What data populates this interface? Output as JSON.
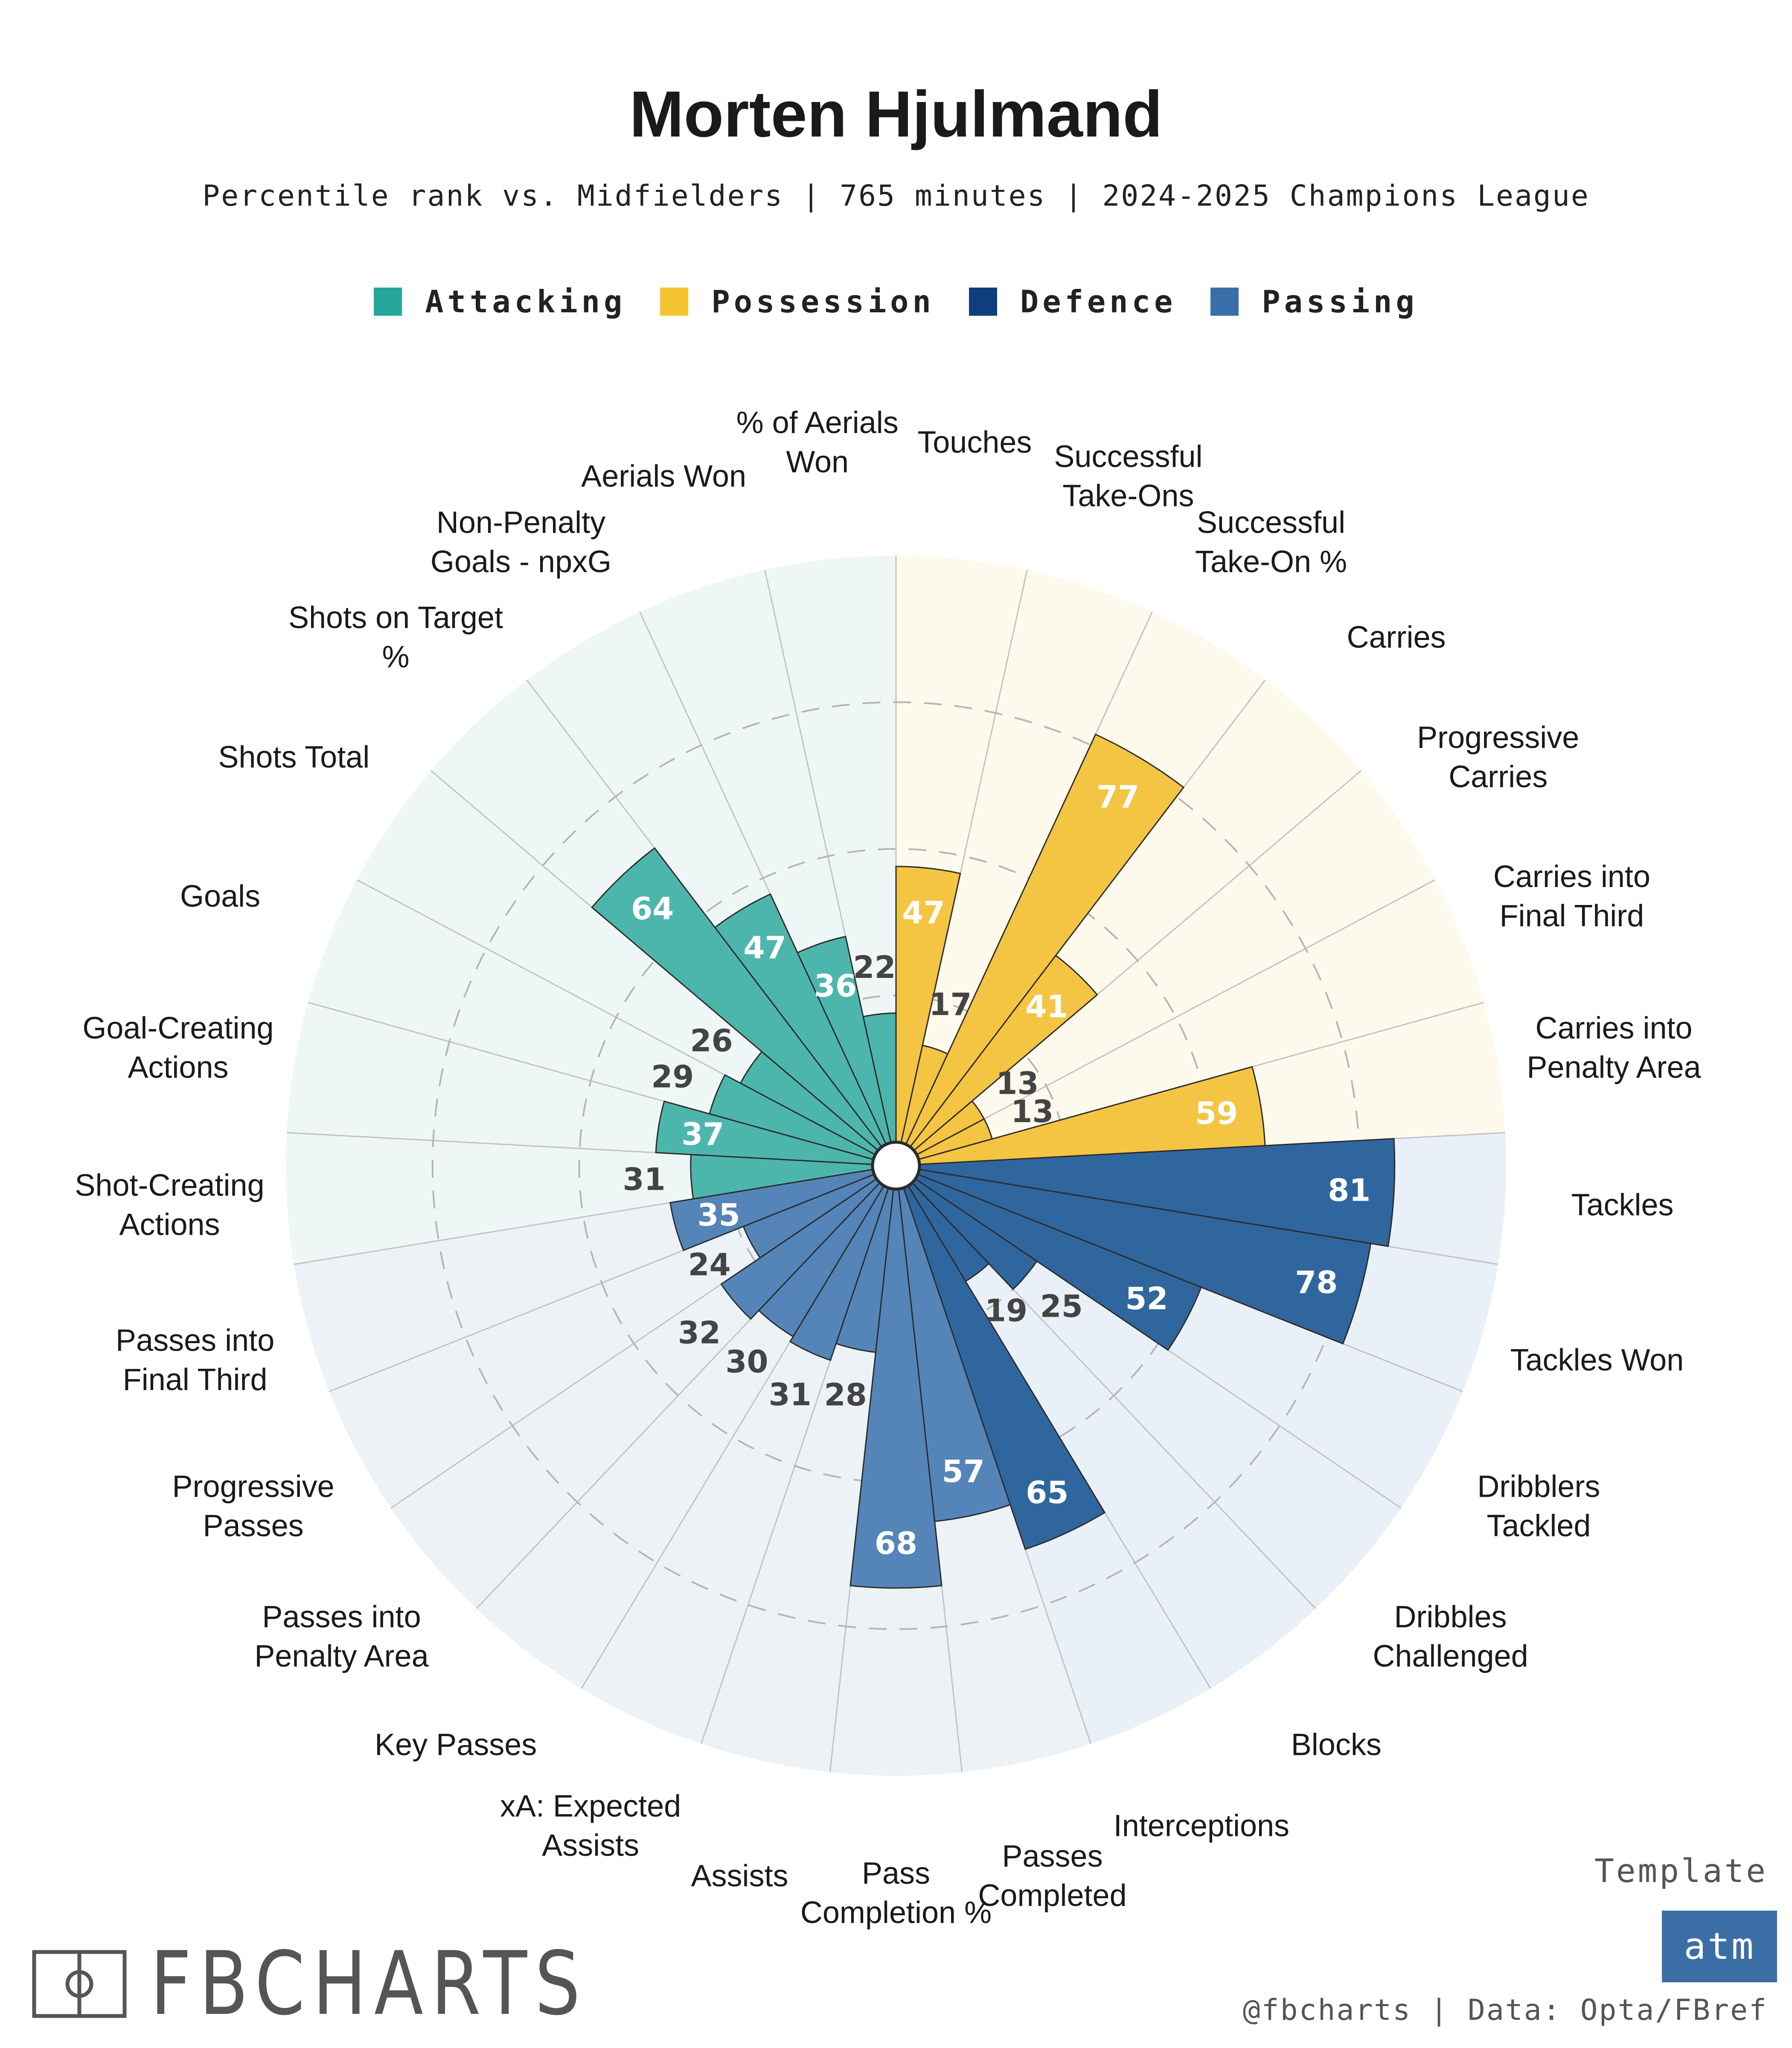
{
  "title": "Morten Hjulmand",
  "subtitle": "Percentile rank vs. Midfielders | 765 minutes | 2024-2025 Champions League",
  "legend": [
    {
      "label": "Attacking",
      "color": "#26a69a"
    },
    {
      "label": "Possession",
      "color": "#f4c430"
    },
    {
      "label": "Defence",
      "color": "#0d3f7e"
    },
    {
      "label": "Passing",
      "color": "#3a6ea8"
    }
  ],
  "brand": "FBCHARTS",
  "template_label": "Template",
  "template_badge": "atm",
  "credit": "@fbcharts | Data: Opta/FBref",
  "chart_data": {
    "type": "radial_bar",
    "title": "Morten Hjulmand",
    "subtitle": "Percentile rank vs. Midfielders | 765 minutes | 2024-2025 Champions League",
    "rlim": [
      0,
      100
    ],
    "gridlines": [
      25,
      50,
      75
    ],
    "direction": "clockwise from top",
    "groups": {
      "Attacking": {
        "bar_color": "#4db6ac",
        "bg_color": "#eef7f5"
      },
      "Possession": {
        "bar_color": "#f4c542",
        "bg_color": "#fdf9ec"
      },
      "Defence": {
        "bar_color": "#30669e",
        "bg_color": "#eaf0f7"
      },
      "Passing": {
        "bar_color": "#5585b8",
        "bg_color": "#edf2f7"
      }
    },
    "categories": [
      {
        "name": "Touches",
        "group": "Possession",
        "value": 47
      },
      {
        "name": "Successful Take-Ons",
        "group": "Possession",
        "value": 17
      },
      {
        "name": "Successful Take-On %",
        "group": "Possession",
        "value": 77
      },
      {
        "name": "Carries",
        "group": "Possession",
        "value": 41
      },
      {
        "name": "Progressive Carries",
        "group": "Possession",
        "value": 13
      },
      {
        "name": "Carries into Final Third",
        "group": "Possession",
        "value": 13
      },
      {
        "name": "Carries into Penalty Area",
        "group": "Possession",
        "value": 59
      },
      {
        "name": "Tackles",
        "group": "Defence",
        "value": 81
      },
      {
        "name": "Tackles Won",
        "group": "Defence",
        "value": 78
      },
      {
        "name": "Dribblers Tackled",
        "group": "Defence",
        "value": 52
      },
      {
        "name": "Dribbles Challenged",
        "group": "Defence",
        "value": 25
      },
      {
        "name": "Blocks",
        "group": "Defence",
        "value": 19
      },
      {
        "name": "Interceptions",
        "group": "Defence",
        "value": 65
      },
      {
        "name": "Passes Completed",
        "group": "Passing",
        "value": 57
      },
      {
        "name": "Pass Completion %",
        "group": "Passing",
        "value": 68
      },
      {
        "name": "Assists",
        "group": "Passing",
        "value": 28
      },
      {
        "name": "xA: Expected Assists",
        "group": "Passing",
        "value": 31
      },
      {
        "name": "Key Passes",
        "group": "Passing",
        "value": 30
      },
      {
        "name": "Passes into Penalty Area",
        "group": "Passing",
        "value": 32
      },
      {
        "name": "Progressive Passes",
        "group": "Passing",
        "value": 24
      },
      {
        "name": "Passes into Final Third",
        "group": "Passing",
        "value": 35
      },
      {
        "name": "Shot-Creating Actions",
        "group": "Attacking",
        "value": 31
      },
      {
        "name": "Goal-Creating Actions",
        "group": "Attacking",
        "value": 37
      },
      {
        "name": "Goals",
        "group": "Attacking",
        "value": 29
      },
      {
        "name": "Shots Total",
        "group": "Attacking",
        "value": 26
      },
      {
        "name": "Shots on Target %",
        "group": "Attacking",
        "value": 64
      },
      {
        "name": "Non-Penalty Goals - npxG",
        "group": "Attacking",
        "value": 47
      },
      {
        "name": "Aerials Won",
        "group": "Attacking",
        "value": 36
      },
      {
        "name": "% of Aerials Won",
        "group": "Attacking",
        "value": 22
      }
    ],
    "label_lines": [
      [
        "Touches"
      ],
      [
        "Successful",
        "Take-Ons"
      ],
      [
        "Successful",
        "Take-On %"
      ],
      [
        "Carries"
      ],
      [
        "Progressive",
        "Carries"
      ],
      [
        "Carries into",
        "Final Third"
      ],
      [
        "Carries into",
        "Penalty Area"
      ],
      [
        "Tackles"
      ],
      [
        "Tackles Won"
      ],
      [
        "Dribblers",
        "Tackled"
      ],
      [
        "Dribbles",
        "Challenged"
      ],
      [
        "Blocks"
      ],
      [
        "Interceptions"
      ],
      [
        "Passes",
        "Completed"
      ],
      [
        "Pass",
        "Completion %"
      ],
      [
        "Assists"
      ],
      [
        "xA: Expected",
        "Assists"
      ],
      [
        "Key Passes"
      ],
      [
        "Passes into",
        "Penalty Area"
      ],
      [
        "Progressive",
        "Passes"
      ],
      [
        "Passes into",
        "Final Third"
      ],
      [
        "Shot-Creating",
        "Actions"
      ],
      [
        "Goal-Creating",
        "Actions"
      ],
      [
        "Goals"
      ],
      [
        "Shots Total"
      ],
      [
        "Shots on Target",
        "%"
      ],
      [
        "Non-Penalty",
        "Goals - npxG"
      ],
      [
        "Aerials Won"
      ],
      [
        "% of Aerials",
        "Won"
      ]
    ]
  }
}
